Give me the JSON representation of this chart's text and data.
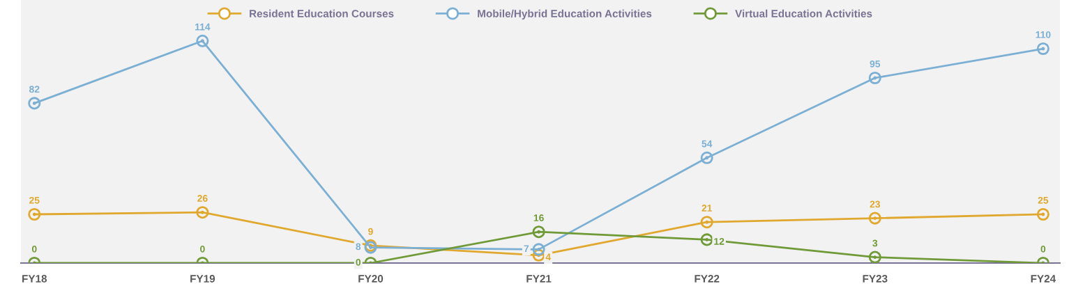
{
  "chart_data": {
    "type": "line",
    "categories": [
      "FY18",
      "FY19",
      "FY20",
      "FY21",
      "FY22",
      "FY23",
      "FY24"
    ],
    "series": [
      {
        "name": "Resident Education Courses",
        "color": "#e0a82e",
        "values": [
          25,
          26,
          9,
          4,
          21,
          23,
          25
        ]
      },
      {
        "name": "Mobile/Hybrid Education Activities",
        "color": "#7bafd4",
        "values": [
          82,
          114,
          8,
          7,
          54,
          95,
          110
        ]
      },
      {
        "name": "Virtual Education Activities",
        "color": "#6f9a37",
        "values": [
          0,
          0,
          0,
          16,
          12,
          3,
          0
        ]
      }
    ],
    "ylim": [
      0,
      135
    ],
    "tick_labels": "x",
    "grid": false,
    "legend": "top",
    "marker": "circle",
    "line_style": "solid",
    "data_labels": true
  }
}
